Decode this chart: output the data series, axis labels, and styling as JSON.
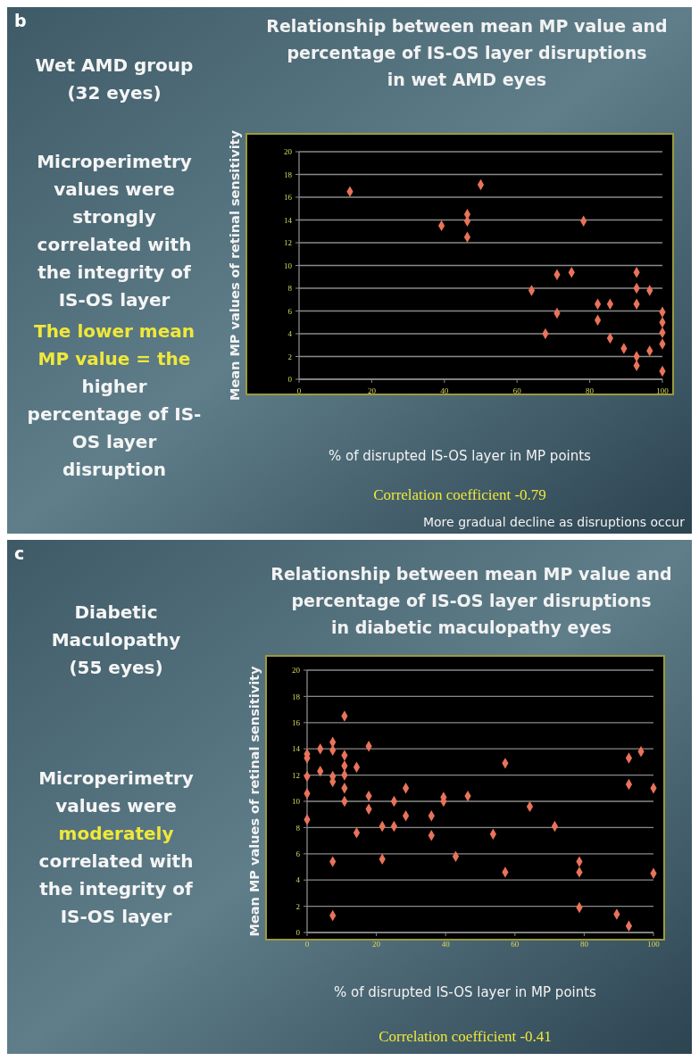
{
  "chart_data": [
    {
      "type": "scatter",
      "title": "Relationship between mean MP value and percentage of IS-OS layer disruptions in wet AMD eyes",
      "xlabel": "% of disrupted IS-OS layer in MP points",
      "ylabel": "Mean MP values of retinal sensitivity",
      "xlim": [
        0,
        100
      ],
      "ylim": [
        0,
        20
      ],
      "xticks": [
        0,
        20,
        40,
        60,
        80,
        100
      ],
      "yticks": [
        0,
        2,
        4,
        6,
        8,
        10,
        12,
        14,
        16,
        18,
        20
      ],
      "grid": "y",
      "marker": "diamond",
      "annotations": [
        "b",
        "Wet AMD group\n(32 eyes)",
        "Microperimetry\nvalues were\nstrongly\ncorrelated with\nthe integrity of\nIS-OS layer",
        "The lower mean\nMP value = the\nhigher\npercentage of IS-\nOS layer\ndisruption",
        "Correlation coefficient -0.79",
        "More gradual decline as disruptions occur"
      ],
      "series": [
        {
          "color": "#e8735a",
          "x": [
            14,
            39.2,
            46.3,
            46.3,
            46.3,
            50,
            78.3,
            64,
            67.8,
            71,
            71,
            75,
            82.2,
            82.2,
            85.6,
            85.6,
            89.4,
            92.9,
            92.9,
            92.9,
            92.9,
            92.9,
            96.5,
            96.5,
            100,
            100,
            100,
            100,
            100
          ],
          "values": [
            16.5,
            13.5,
            14.5,
            13.9,
            12.5,
            17.1,
            13.9,
            7.8,
            4.0,
            9.2,
            5.8,
            9.4,
            6.6,
            5.2,
            6.6,
            3.6,
            2.7,
            9.4,
            8.0,
            6.6,
            2.0,
            1.2,
            7.8,
            2.5,
            5.9,
            5.0,
            4.1,
            3.1,
            0.7
          ]
        }
      ]
    },
    {
      "type": "scatter",
      "title": "Relationship between mean MP value and percentage of IS-OS layer disruptions in diabetic maculopathy eyes",
      "xlabel": "% of disrupted IS-OS layer in MP points",
      "ylabel": "Mean MP values of retinal sensitivity",
      "xlim": [
        0,
        100
      ],
      "ylim": [
        0,
        20
      ],
      "xticks": [
        0,
        20,
        40,
        60,
        80,
        100
      ],
      "yticks": [
        0,
        2,
        4,
        6,
        8,
        10,
        12,
        14,
        16,
        18,
        20
      ],
      "grid": "y",
      "marker": "diamond",
      "annotations": [
        "c",
        "Diabetic\nMaculopathy\n(55 eyes)",
        "Microperimetry\nvalues were\nmoderately\ncorrelated with\nthe integrity of\nIS-OS layer",
        "Correlation coefficient -0.41"
      ],
      "series": [
        {
          "color": "#e8735a",
          "x": [
            0,
            0,
            0,
            0,
            0,
            3.8,
            3.8,
            7.4,
            7.4,
            7.4,
            7.4,
            7.4,
            7.4,
            10.8,
            10.8,
            10.8,
            10.8,
            10.8,
            10.8,
            14.3,
            14.3,
            17.8,
            17.8,
            17.8,
            21.7,
            21.7,
            25.1,
            25.1,
            28.5,
            28.5,
            35.9,
            35.9,
            39.4,
            39.4,
            42.9,
            46.4,
            53.7,
            57.2,
            57.2,
            64.3,
            71.5,
            78.6,
            78.6,
            78.6,
            89.4,
            92.9,
            92.9,
            92.9,
            96.4,
            100,
            100
          ],
          "values": [
            13.6,
            13.3,
            11.9,
            10.6,
            8.6,
            14.0,
            12.3,
            14.5,
            13.9,
            11.9,
            11.5,
            5.4,
            1.3,
            16.5,
            13.5,
            12.7,
            12.0,
            11.0,
            10.0,
            12.6,
            7.6,
            14.2,
            10.4,
            9.4,
            8.1,
            5.6,
            10.0,
            8.1,
            11.0,
            8.9,
            8.9,
            7.4,
            10.3,
            10.0,
            5.8,
            10.4,
            7.5,
            12.9,
            4.6,
            9.6,
            8.1,
            5.4,
            4.6,
            1.9,
            1.4,
            13.3,
            11.3,
            0.5,
            13.8,
            11.0,
            4.5
          ]
        }
      ]
    }
  ]
}
